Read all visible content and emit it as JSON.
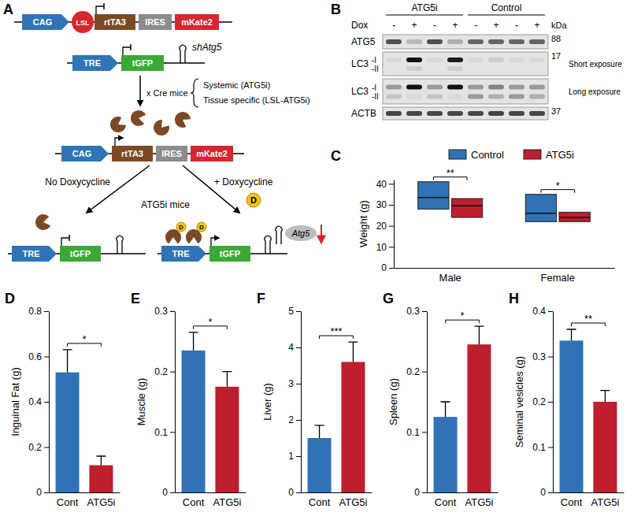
{
  "schematic": {
    "panel": "A",
    "transgene1": [
      "CAG",
      "LSL",
      "rtTA3",
      "IRES",
      "mKate2"
    ],
    "transgene2": [
      "TRE",
      "tGFP"
    ],
    "shrna": "shAtg5",
    "cross": "x Cre mice",
    "models": [
      "Systemic (ATG5i)",
      "Tissue specific (LSL-ATG5i)"
    ],
    "conditions": [
      "No Doxycycline",
      "+ Doxycycline"
    ],
    "mice": "ATG5i mice",
    "dox": "D",
    "target": "Atg5"
  },
  "blot": {
    "panel": "B",
    "groups": [
      "ATG5i",
      "Control"
    ],
    "treatment": "Dox",
    "lanes": [
      "-",
      "+",
      "-",
      "+",
      "-",
      "+",
      "-",
      "+"
    ],
    "unit": "kDa",
    "rows": [
      {
        "label": "ATG5",
        "marker": 88
      },
      {
        "label": "LC3",
        "bands": [
          "-I",
          "-II"
        ],
        "exposure": "Short exposure",
        "marker": 17
      },
      {
        "label": "LC3",
        "bands": [
          "-I",
          "-II"
        ],
        "exposure": "Long exposure"
      },
      {
        "label": "ACTB",
        "marker": 37
      }
    ]
  },
  "chart_data": [
    {
      "panel": "C",
      "type": "box",
      "ylabel": "Weight (g)",
      "categories": [
        "Male",
        "Female"
      ],
      "ylim": [
        0,
        42
      ],
      "yticks": [
        0,
        10,
        20,
        30,
        40
      ],
      "legend": "top",
      "series": [
        {
          "name": "Control",
          "color": "#2f72b6",
          "low": [
            28,
            22
          ],
          "median": [
            33.5,
            26
          ],
          "high": [
            41,
            35
          ]
        },
        {
          "name": "ATG5i",
          "color": "#be1e2d",
          "low": [
            24,
            22
          ],
          "median": [
            29.5,
            24
          ],
          "high": [
            33,
            26.5
          ]
        }
      ],
      "annotations": [
        "**",
        "*"
      ]
    },
    {
      "panel": "D",
      "type": "bar",
      "ylabel": "Inguinal Fat (g)",
      "categories": [
        "Cont",
        "ATG5i"
      ],
      "values": [
        0.53,
        0.12
      ],
      "errors": [
        0.1,
        0.04
      ],
      "colors": [
        "#2f72b6",
        "#be1e2d"
      ],
      "ylim": [
        0,
        0.8
      ],
      "yticks": [
        0,
        0.2,
        0.4,
        0.6,
        0.8
      ],
      "annotations": [
        "*"
      ]
    },
    {
      "panel": "E",
      "type": "bar",
      "ylabel": "Muscle (g)",
      "categories": [
        "Cont",
        "ATG5i"
      ],
      "values": [
        0.235,
        0.175
      ],
      "errors": [
        0.03,
        0.025
      ],
      "colors": [
        "#2f72b6",
        "#be1e2d"
      ],
      "ylim": [
        0,
        0.3
      ],
      "yticks": [
        0,
        0.1,
        0.2,
        0.3
      ],
      "annotations": [
        "*"
      ]
    },
    {
      "panel": "F",
      "type": "bar",
      "ylabel": "Liver (g)",
      "categories": [
        "Cont",
        "ATG5i"
      ],
      "values": [
        1.5,
        3.6
      ],
      "errors": [
        0.35,
        0.55
      ],
      "colors": [
        "#2f72b6",
        "#be1e2d"
      ],
      "ylim": [
        0,
        5
      ],
      "yticks": [
        0,
        1,
        2,
        3,
        4,
        5
      ],
      "annotations": [
        "***"
      ]
    },
    {
      "panel": "G",
      "type": "bar",
      "ylabel": "Spleen (g)",
      "categories": [
        "Cont",
        "ATG5i"
      ],
      "values": [
        0.125,
        0.245
      ],
      "errors": [
        0.025,
        0.03
      ],
      "colors": [
        "#2f72b6",
        "#be1e2d"
      ],
      "ylim": [
        0,
        0.3
      ],
      "yticks": [
        0,
        0.1,
        0.2,
        0.3
      ],
      "annotations": [
        "*"
      ]
    },
    {
      "panel": "H",
      "type": "bar",
      "ylabel": "Seminal vesicles (g)",
      "categories": [
        "Cont",
        "ATG5i"
      ],
      "values": [
        0.335,
        0.2
      ],
      "errors": [
        0.025,
        0.025
      ],
      "colors": [
        "#2f72b6",
        "#be1e2d"
      ],
      "ylim": [
        0,
        0.4
      ],
      "yticks": [
        0,
        0.1,
        0.2,
        0.3,
        0.4
      ],
      "annotations": [
        "**"
      ]
    }
  ]
}
